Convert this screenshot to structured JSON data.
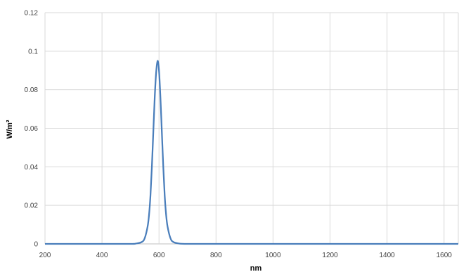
{
  "chart_data": {
    "type": "line",
    "title": "",
    "xlabel": "nm",
    "ylabel": "W/m²",
    "xlim": [
      200,
      1650
    ],
    "ylim": [
      0,
      0.12
    ],
    "xticks": [
      "200",
      "400",
      "600",
      "800",
      "1000",
      "1200",
      "1400",
      "1600"
    ],
    "yticks": [
      "0",
      "0.02",
      "0.04",
      "0.06",
      "0.08",
      "0.1",
      "0.12"
    ],
    "grid": true,
    "legend": "none",
    "series_color": "#4a7ebb",
    "series": [
      {
        "x": [
          200,
          400,
          500,
          520,
          540,
          550,
          560,
          565,
          570,
          575,
          580,
          585,
          590,
          595,
          600,
          605,
          610,
          615,
          620,
          625,
          630,
          640,
          650,
          670,
          700,
          800,
          1000,
          1200,
          1400,
          1600,
          1650
        ],
        "values": [
          0,
          0,
          0,
          0.0002,
          0.001,
          0.003,
          0.009,
          0.015,
          0.025,
          0.04,
          0.058,
          0.076,
          0.089,
          0.095,
          0.09,
          0.076,
          0.058,
          0.04,
          0.025,
          0.015,
          0.009,
          0.003,
          0.001,
          0.0002,
          0,
          0,
          0,
          0,
          0,
          0,
          0
        ]
      }
    ]
  }
}
